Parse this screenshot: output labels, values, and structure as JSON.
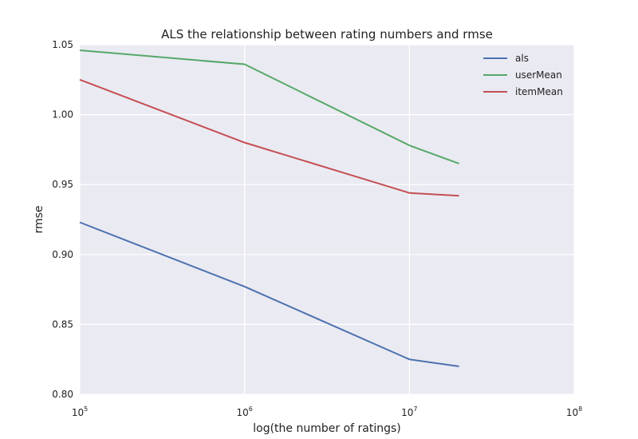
{
  "chart_data": {
    "type": "line",
    "title": "ALS the relationship between rating numbers and rmse",
    "xlabel": "log(the number of ratings)",
    "ylabel": "rmse",
    "xscale": "log",
    "xlim": [
      100000,
      100000000
    ],
    "ylim": [
      0.8,
      1.05
    ],
    "grid": true,
    "legend_position": "top-right",
    "x": [
      100000,
      1000000,
      10000000,
      20000000
    ],
    "x_ticks": [
      {
        "value": 100000,
        "base": "10",
        "exp": "5"
      },
      {
        "value": 1000000,
        "base": "10",
        "exp": "6"
      },
      {
        "value": 10000000,
        "base": "10",
        "exp": "7"
      },
      {
        "value": 100000000,
        "base": "10",
        "exp": "8"
      }
    ],
    "y_ticks": [
      {
        "value": 0.8,
        "label": "0.80"
      },
      {
        "value": 0.85,
        "label": "0.85"
      },
      {
        "value": 0.9,
        "label": "0.90"
      },
      {
        "value": 0.95,
        "label": "0.95"
      },
      {
        "value": 1.0,
        "label": "1.00"
      },
      {
        "value": 1.05,
        "label": "1.05"
      }
    ],
    "series": [
      {
        "name": "als",
        "color": "#4c72b0",
        "values": [
          0.923,
          0.877,
          0.825,
          0.82
        ]
      },
      {
        "name": "userMean",
        "color": "#55a868",
        "values": [
          1.046,
          1.036,
          0.978,
          0.965
        ]
      },
      {
        "name": "itemMean",
        "color": "#c44e52",
        "values": [
          1.025,
          0.98,
          0.944,
          0.942
        ]
      }
    ],
    "colors": {
      "plot_background": "#eaeaf2",
      "grid": "#ffffff"
    }
  }
}
